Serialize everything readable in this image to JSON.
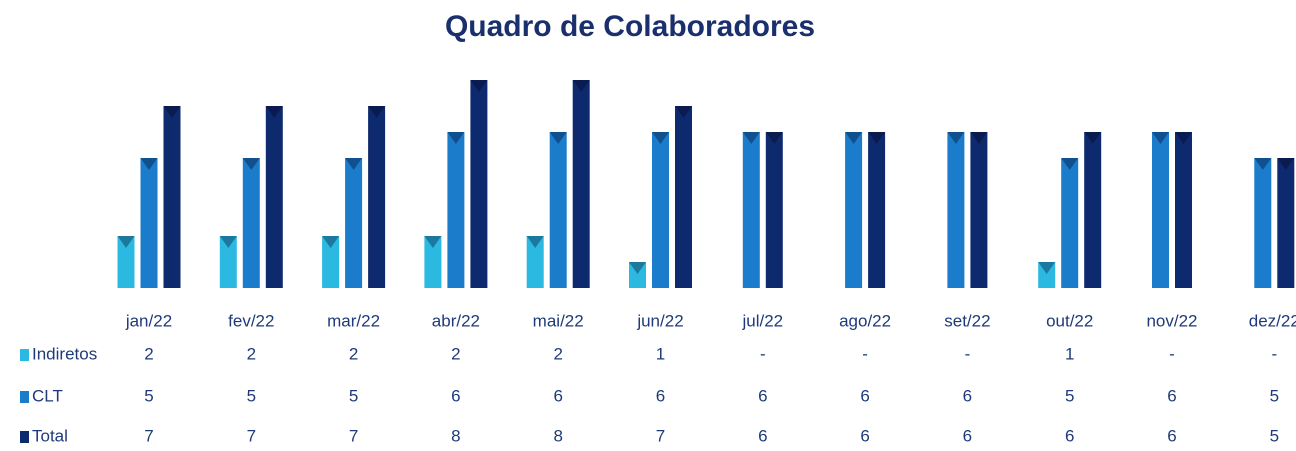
{
  "chart_data": {
    "type": "bar",
    "title": "Quadro de Colaboradores",
    "categories": [
      "jan/22",
      "fev/22",
      "mar/22",
      "abr/22",
      "mai/22",
      "jun/22",
      "jul/22",
      "ago/22",
      "set/22",
      "out/22",
      "nov/22",
      "dez/22"
    ],
    "series": [
      {
        "name": "Indiretos",
        "color": "#2bb9e2",
        "values": [
          2,
          2,
          2,
          2,
          2,
          1,
          0,
          0,
          0,
          1,
          0,
          0
        ],
        "value_labels": [
          "2",
          "2",
          "2",
          "2",
          "2",
          "1",
          "-",
          "-",
          "-",
          "1",
          "-",
          "-"
        ]
      },
      {
        "name": "CLT",
        "color": "#1a7ccb",
        "values": [
          5,
          5,
          5,
          6,
          6,
          6,
          6,
          6,
          6,
          5,
          6,
          5
        ]
      },
      {
        "name": "Total",
        "color": "#0e2a6e",
        "values": [
          7,
          7,
          7,
          8,
          8,
          7,
          6,
          6,
          6,
          6,
          6,
          5
        ]
      }
    ]
  }
}
